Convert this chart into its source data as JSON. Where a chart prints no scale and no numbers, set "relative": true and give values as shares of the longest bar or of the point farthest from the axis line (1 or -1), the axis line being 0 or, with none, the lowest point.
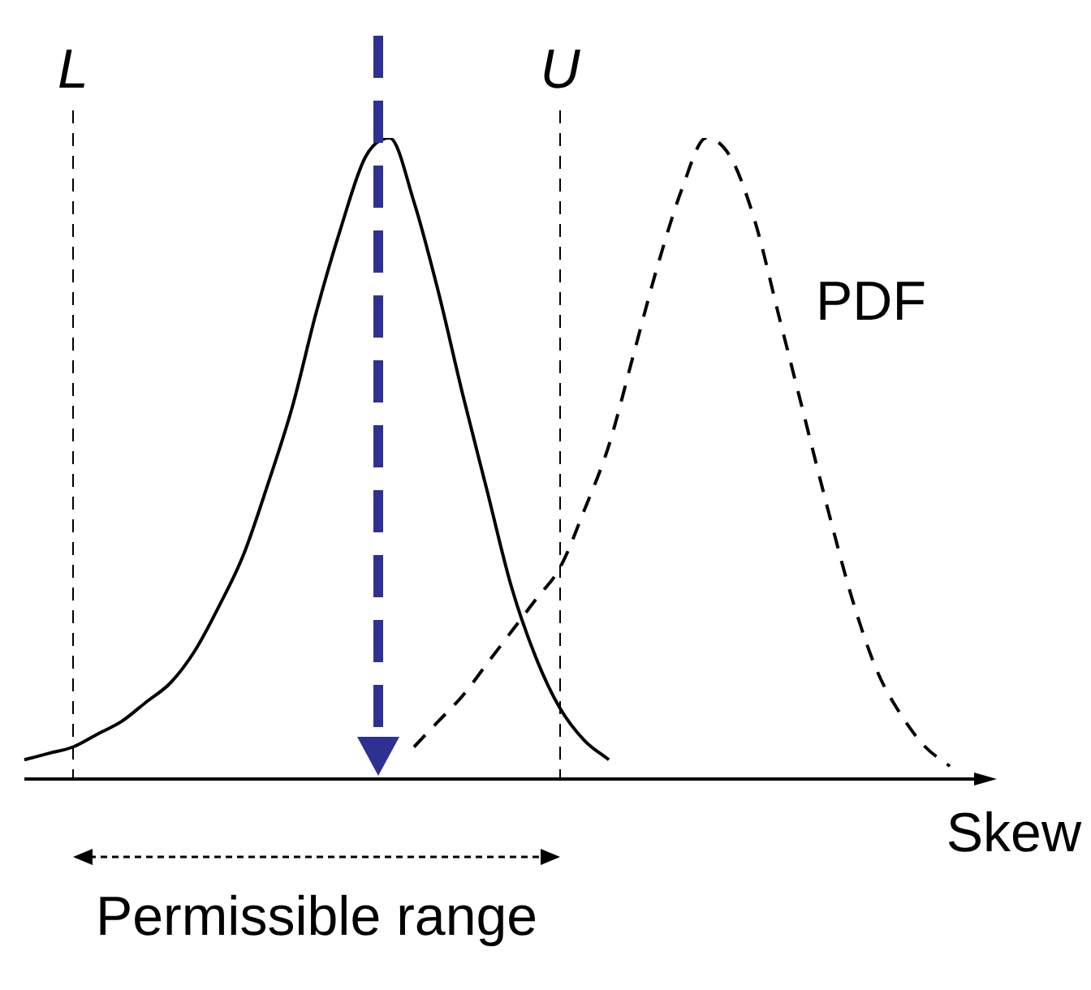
{
  "chart_data": {
    "type": "line",
    "relative": true,
    "xlabel": "Skew",
    "categories": [
      null,
      null,
      null,
      null,
      null,
      null,
      null,
      null,
      null,
      null,
      null,
      null,
      null,
      null,
      null,
      null,
      null,
      null,
      null,
      null,
      null,
      null,
      null,
      null,
      null,
      null,
      null,
      null,
      null,
      null,
      null,
      null,
      null,
      null,
      null,
      null,
      null,
      null,
      null,
      null
    ],
    "series": [
      {
        "color": "#000000",
        "line_style": "solid",
        "values": [
          0.03,
          0.04,
          0.05,
          0.07,
          0.09,
          0.12,
          0.15,
          0.2,
          0.27,
          0.35,
          0.46,
          0.58,
          0.73,
          0.86,
          0.97,
          1.0,
          0.9,
          0.76,
          0.6,
          0.45,
          0.3,
          0.19,
          0.11,
          0.06,
          0.03,
          null,
          null,
          null,
          null,
          null,
          null,
          null,
          null,
          null,
          null,
          null,
          null,
          null,
          null,
          null
        ]
      },
      {
        "name": "PDF",
        "color": "#000000",
        "line_style": "dashed",
        "values": [
          null,
          null,
          null,
          null,
          null,
          null,
          null,
          null,
          null,
          null,
          null,
          null,
          null,
          null,
          null,
          null,
          0.05,
          0.09,
          0.13,
          0.18,
          0.23,
          0.28,
          0.33,
          0.42,
          0.52,
          0.66,
          0.8,
          0.92,
          1.0,
          0.97,
          0.87,
          0.72,
          0.57,
          0.42,
          0.28,
          0.17,
          0.1,
          0.05,
          0.02,
          null
        ]
      }
    ],
    "annotations": [
      "L",
      "U",
      "Permissible range"
    ],
    "marker": "none",
    "legend": false
  }
}
